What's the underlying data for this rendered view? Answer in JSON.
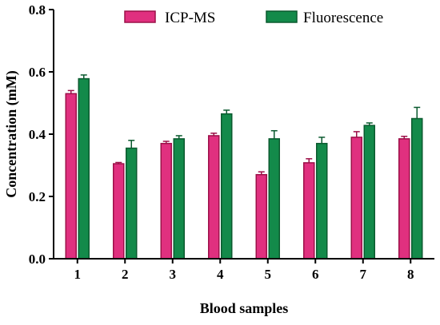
{
  "chart_data": {
    "type": "bar",
    "title": "",
    "xlabel": "Blood samples",
    "ylabel": "Concentration (mM)",
    "categories": [
      "1",
      "2",
      "3",
      "4",
      "5",
      "6",
      "7",
      "8"
    ],
    "ylim": [
      0,
      0.8
    ],
    "yticks": [
      0.0,
      0.2,
      0.4,
      0.6,
      0.8
    ],
    "ytick_labels": [
      "0.0",
      "0.2",
      "0.4",
      "0.6",
      "0.8"
    ],
    "legend_position": "top",
    "grid": false,
    "series": [
      {
        "name": "ICP-MS",
        "color": "#e0307f",
        "edge_color": "#9c1048",
        "values": [
          0.53,
          0.305,
          0.37,
          0.395,
          0.27,
          0.308,
          0.39,
          0.385
        ],
        "errors": [
          0.01,
          0.004,
          0.007,
          0.008,
          0.009,
          0.013,
          0.018,
          0.008
        ]
      },
      {
        "name": "Fluorescence",
        "color": "#138a4a",
        "edge_color": "#0b5a2f",
        "values": [
          0.578,
          0.355,
          0.385,
          0.465,
          0.385,
          0.37,
          0.428,
          0.45
        ],
        "errors": [
          0.012,
          0.025,
          0.01,
          0.012,
          0.026,
          0.02,
          0.008,
          0.036
        ]
      }
    ]
  }
}
